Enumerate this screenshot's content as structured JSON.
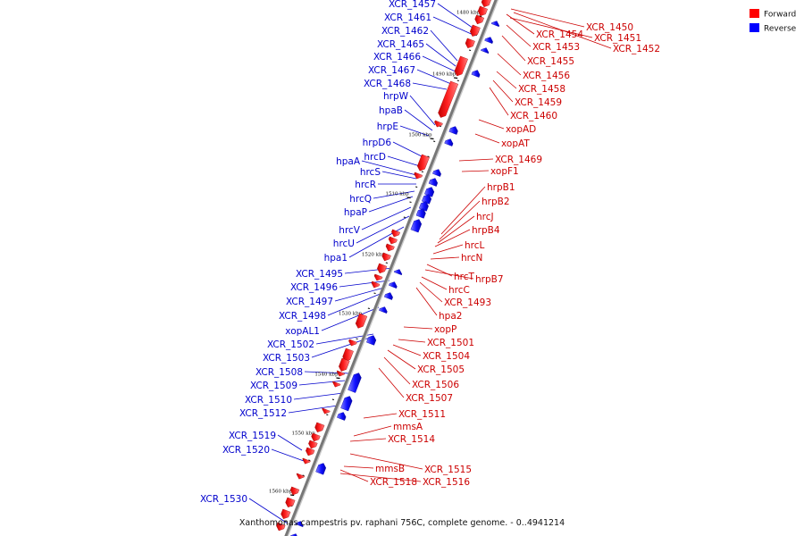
{
  "legend": {
    "forward": {
      "label": "Forward",
      "color": "#ff0000"
    },
    "reverse": {
      "label": "Reverse",
      "color": "#0000ff"
    }
  },
  "caption": "Xanthomonas campestris pv. raphani 756C, complete genome. - 0..4941214",
  "ticks": [
    "1480 kbp",
    "1490 kbp",
    "1500 kbp",
    "1510 kbp",
    "1520 kbp",
    "1530 kbp",
    "1540 kbp",
    "1550 kbp",
    "1560 kbp"
  ],
  "reverse_labels": [
    "XCR_1457",
    "XCR_1461",
    "XCR_1462",
    "XCR_1465",
    "XCR_1466",
    "XCR_1467",
    "XCR_1468",
    "hrpW",
    "hpaB",
    "hrpE",
    "hrpD6",
    "hrcD",
    "hpaA",
    "hrcS",
    "hrcR",
    "hrcQ",
    "hpaP",
    "hrcV",
    "hrcU",
    "hpa1",
    "XCR_1495",
    "XCR_1496",
    "XCR_1497",
    "XCR_1498",
    "xopAL1",
    "XCR_1502",
    "XCR_1503",
    "XCR_1508",
    "XCR_1509",
    "XCR_1510",
    "XCR_1512",
    "XCR_1519",
    "XCR_1520",
    "XCR_1530"
  ],
  "forward_labels": [
    "XCR_1450",
    "XCR_1454",
    "XCR_1451",
    "XCR_1453",
    "XCR_1452",
    "XCR_1455",
    "XCR_1456",
    "XCR_1458",
    "XCR_1459",
    "XCR_1460",
    "xopAD",
    "xopAT",
    "XCR_1469",
    "xopF1",
    "hrpB1",
    "hrpB2",
    "hrcJ",
    "hrpB4",
    "hrcL",
    "hrcN",
    "hrcT",
    "hrpB7",
    "hrcC",
    "XCR_1493",
    "hpa2",
    "xopP",
    "XCR_1501",
    "XCR_1504",
    "XCR_1505",
    "XCR_1506",
    "XCR_1507",
    "XCR_1511",
    "mmsA",
    "XCR_1514",
    "XCR_1515",
    "mmsB",
    "XCR_1518",
    "XCR_1516"
  ]
}
